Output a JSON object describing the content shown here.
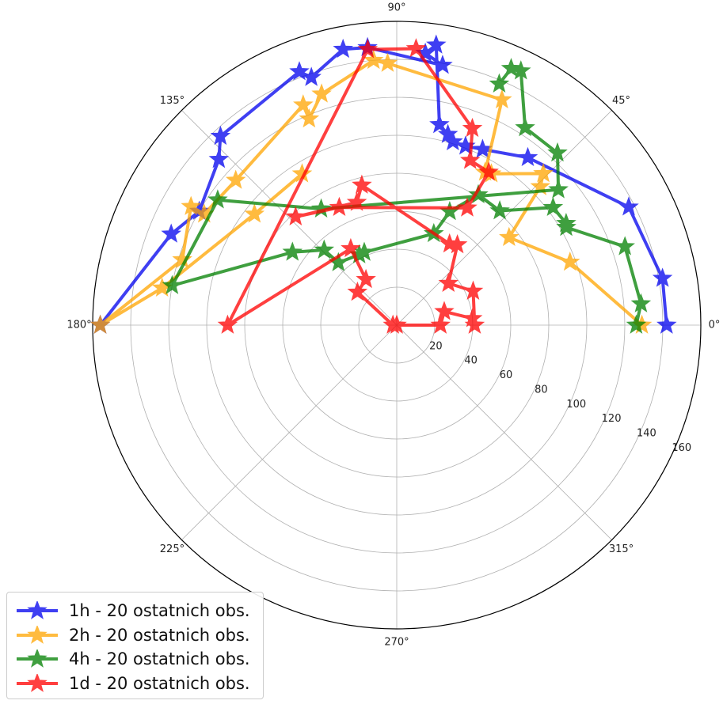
{
  "chart_data": {
    "type": "polar-line",
    "angle_unit": "degrees",
    "angle_tick_labels": [
      "0°",
      "45°",
      "90°",
      "135°",
      "180°",
      "225°",
      "270°",
      "315°"
    ],
    "radial_tick_labels": [
      "20",
      "40",
      "60",
      "80",
      "100",
      "120",
      "140",
      "160"
    ],
    "rlim": [
      0,
      160
    ],
    "grid": true,
    "marker": "star",
    "legend_position": "bottom-left",
    "series": [
      {
        "name": "1h - 20 ostatnich obs.",
        "color": "#0000ee",
        "points": [
          [
            0,
            142
          ],
          [
            10,
            142
          ],
          [
            27,
            137
          ],
          [
            52,
            112
          ],
          [
            64,
            103
          ],
          [
            69,
            101
          ],
          [
            73,
            101
          ],
          [
            75,
            104
          ],
          [
            78,
            108
          ],
          [
            82,
            149
          ],
          [
            84,
            144
          ],
          [
            80,
            139
          ],
          [
            96,
            147
          ],
          [
            101,
            148
          ],
          [
            109,
            138
          ],
          [
            111,
            143
          ],
          [
            133,
            136
          ],
          [
            137,
            128
          ],
          [
            150,
            120
          ],
          [
            158,
            128
          ],
          [
            180,
            156
          ]
        ]
      },
      {
        "name": "2h - 20 ostatnich obs.",
        "color": "#ffa500",
        "points": [
          [
            0,
            129
          ],
          [
            20,
            97
          ],
          [
            38,
            75
          ],
          [
            44,
            105
          ],
          [
            46,
            111
          ],
          [
            58,
            94
          ],
          [
            60,
            93
          ],
          [
            65,
            131
          ],
          [
            92,
            138
          ],
          [
            95,
            140
          ],
          [
            108,
            128
          ],
          [
            113,
            118
          ],
          [
            113,
            126
          ],
          [
            138,
            114
          ],
          [
            150,
            117
          ],
          [
            150,
            125
          ],
          [
            163,
            118
          ],
          [
            180,
            156
          ],
          [
            171,
            125
          ],
          [
            142,
            95
          ],
          [
            122,
            94
          ]
        ]
      },
      {
        "name": "4h - 20 ostatnich obs.",
        "color": "#008000",
        "points": [
          [
            0,
            126
          ],
          [
            5,
            129
          ],
          [
            19,
            127
          ],
          [
            30,
            103
          ],
          [
            31,
            104
          ],
          [
            37,
            103
          ],
          [
            48,
            81
          ],
          [
            58,
            81
          ],
          [
            65,
            66
          ],
          [
            68,
            52
          ],
          [
            114,
            42
          ],
          [
            118,
            42
          ],
          [
            133,
            45
          ],
          [
            134,
            55
          ],
          [
            145,
            67
          ],
          [
            170,
            120
          ],
          [
            145,
            115
          ],
          [
            123,
            73
          ],
          [
            40,
            111
          ],
          [
            47,
            124
          ],
          [
            57,
            124
          ],
          [
            64,
            149
          ],
          [
            66,
            148
          ],
          [
            67,
            138
          ]
        ]
      },
      {
        "name": "1d - 20 ostatnich obs.",
        "color": "#ff0000",
        "points": [
          [
            0,
            0
          ],
          [
            0,
            23
          ],
          [
            16,
            26
          ],
          [
            5,
            40
          ],
          [
            0,
            41
          ],
          [
            24,
            44
          ],
          [
            39,
            35
          ],
          [
            53,
            53
          ],
          [
            57,
            51
          ],
          [
            104,
            76
          ],
          [
            108,
            68
          ],
          [
            133,
            78
          ],
          [
            116,
            69
          ],
          [
            59,
            72
          ],
          [
            59,
            94
          ],
          [
            66,
            95
          ],
          [
            69,
            111
          ],
          [
            86,
            146
          ],
          [
            96,
            146
          ],
          [
            180,
            89
          ],
          [
            121,
            47
          ],
          [
            124,
            29
          ],
          [
            140,
            27
          ],
          [
            180,
            2
          ]
        ]
      }
    ]
  }
}
